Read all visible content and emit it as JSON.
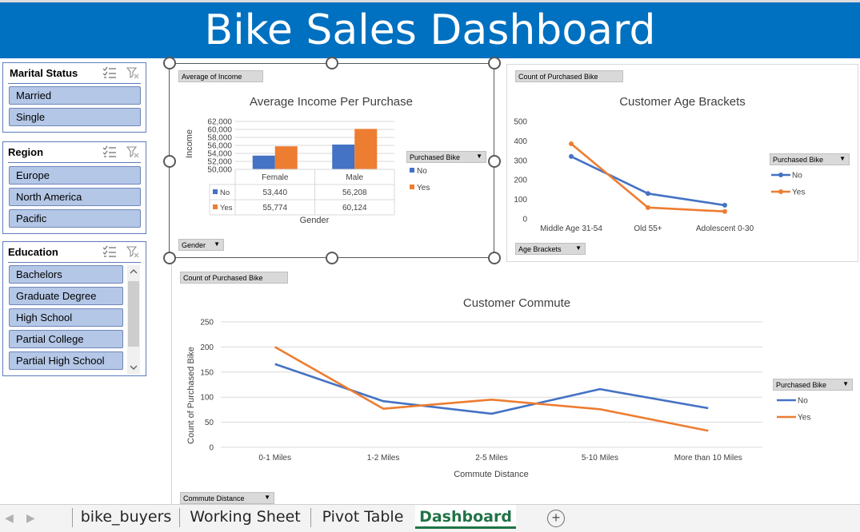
{
  "banner": {
    "title": "Bike Sales Dashboard"
  },
  "slicers": {
    "marital": {
      "title": "Marital Status",
      "items": [
        "Married",
        "Single"
      ]
    },
    "region": {
      "title": "Region",
      "items": [
        "Europe",
        "North America",
        "Pacific"
      ]
    },
    "education": {
      "title": "Education",
      "items": [
        "Bachelors",
        "Graduate Degree",
        "High School",
        "Partial College",
        "Partial High School"
      ]
    }
  },
  "income_chart": {
    "value_button": "Average of Income",
    "axis_button": "Gender",
    "legend_button": "Purchased Bike",
    "chart_data": {
      "type": "bar",
      "title": "Average Income Per Purchase",
      "xlabel": "Gender",
      "ylabel": "Income",
      "categories": [
        "Female",
        "Male"
      ],
      "series": [
        {
          "name": "No",
          "values": [
            53440,
            56208
          ],
          "color": "#4472c4"
        },
        {
          "name": "Yes",
          "values": [
            55774,
            60124
          ],
          "color": "#ed7d31"
        }
      ],
      "ylim": [
        50000,
        62000
      ],
      "yticks": [
        "62,000",
        "60,000",
        "58,000",
        "56,000",
        "54,000",
        "52,000",
        "50,000"
      ],
      "table": {
        "rows": [
          {
            "name": "No",
            "values": [
              "53,440",
              "56,208"
            ]
          },
          {
            "name": "Yes",
            "values": [
              "55,774",
              "60,124"
            ]
          }
        ]
      },
      "grid": true,
      "legend": "right"
    }
  },
  "age_chart": {
    "value_button": "Count of Purchased Bike",
    "axis_button": "Age Brackets",
    "legend_button": "Purchased Bike",
    "chart_data": {
      "type": "line",
      "title": "Customer Age Brackets",
      "categories": [
        "Middle Age 31-54",
        "Old 55+",
        "Adolescent 0-30"
      ],
      "series": [
        {
          "name": "No",
          "values": [
            320,
            130,
            70
          ],
          "color": "#4472c4"
        },
        {
          "name": "Yes",
          "values": [
            385,
            58,
            38
          ],
          "color": "#ed7d31"
        }
      ],
      "ylim": [
        0,
        500
      ],
      "yticks": [
        "500",
        "400",
        "300",
        "200",
        "100",
        "0"
      ],
      "grid": false,
      "legend": "right"
    }
  },
  "commute_chart": {
    "value_button": "Count of Purchased Bike",
    "axis_button": "Commute Distance",
    "legend_button": "Purchased Bike",
    "chart_data": {
      "type": "line",
      "title": "Customer Commute",
      "xlabel": "Commute Distance",
      "ylabel": "Count of Purchased Bike",
      "categories": [
        "0-1 Miles",
        "1-2 Miles",
        "2-5 Miles",
        "5-10 Miles",
        "More than 10 Miles"
      ],
      "series": [
        {
          "name": "No",
          "values": [
            166,
            92,
            67,
            116,
            78
          ],
          "color": "#4472c4"
        },
        {
          "name": "Yes",
          "values": [
            200,
            77,
            95,
            76,
            33
          ],
          "color": "#ed7d31"
        }
      ],
      "ylim": [
        0,
        250
      ],
      "yticks": [
        "250",
        "200",
        "150",
        "100",
        "50",
        "0"
      ],
      "grid": true,
      "legend": "right"
    }
  },
  "tabs": [
    "bike_buyers",
    "Working Sheet",
    "Pivot Table",
    "Dashboard"
  ],
  "active_tab": "Dashboard",
  "add_sheet": "+"
}
